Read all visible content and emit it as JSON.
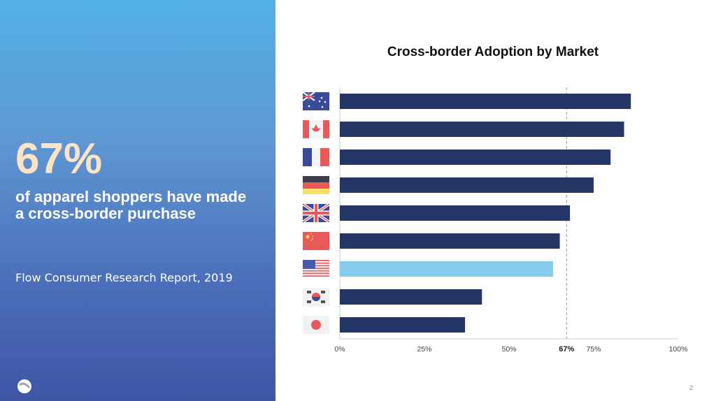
{
  "left_panel": {
    "headline": "67%",
    "subheadline": "of apparel shoppers have made a cross-border purchase",
    "source": "Flow Consumer Research Report, 2019",
    "logo_icon": "flow-logo-icon"
  },
  "page_number": "2",
  "chart_data": {
    "type": "bar",
    "orientation": "horizontal",
    "title": "Cross-border Adoption by Market",
    "categories": [
      "Australia",
      "Canada",
      "France",
      "Germany",
      "United Kingdom",
      "China",
      "United States",
      "South Korea",
      "Japan"
    ],
    "category_display": "flag icons",
    "values": [
      86,
      84,
      80,
      75,
      68,
      65,
      63,
      42,
      37
    ],
    "highlight": "United States",
    "colors": {
      "bar": "#243665",
      "highlight": "#85cbeb",
      "reference_line": "#999999"
    },
    "xlim": [
      0,
      100
    ],
    "x_ticks": [
      "0%",
      "25%",
      "50%",
      "75%",
      "100%"
    ],
    "reference_line": {
      "value": 67,
      "label": "67%"
    },
    "grid": false,
    "legend": "none"
  }
}
